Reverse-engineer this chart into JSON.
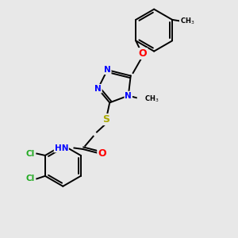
{
  "bg": "#e8e8e8",
  "bc": "#000000",
  "lw": 1.4,
  "fs": 7.5,
  "figsize": [
    3.0,
    3.0
  ],
  "dpi": 100,
  "xlim": [
    -1,
    9
  ],
  "ylim": [
    -1,
    9
  ]
}
